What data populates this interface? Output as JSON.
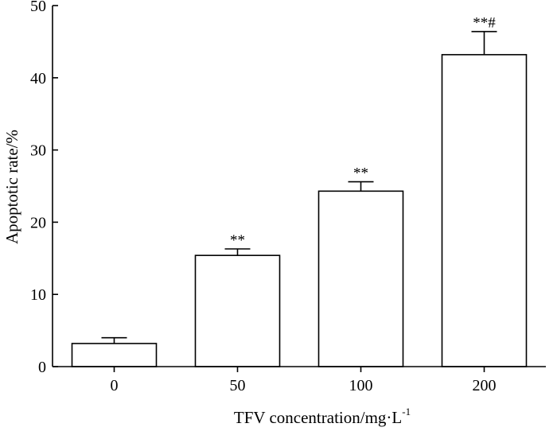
{
  "chart_data": {
    "type": "bar",
    "categories": [
      "0",
      "50",
      "100",
      "200"
    ],
    "values": [
      3.2,
      15.4,
      24.3,
      43.2
    ],
    "errors": [
      0.8,
      0.9,
      1.3,
      3.2
    ],
    "significance": [
      "",
      "**",
      "**",
      "**#"
    ],
    "xlabel": "TFV concentration/mg·L",
    "xlabel_superscript": "-1",
    "ylabel": "Apoptotic rate/%",
    "ylim": [
      0,
      50
    ],
    "yticks": [
      "0",
      "10",
      "20",
      "30",
      "40",
      "50"
    ],
    "bar_fill": "#ffffff",
    "stroke_color": "#000000",
    "grid": false,
    "legend": "none"
  }
}
